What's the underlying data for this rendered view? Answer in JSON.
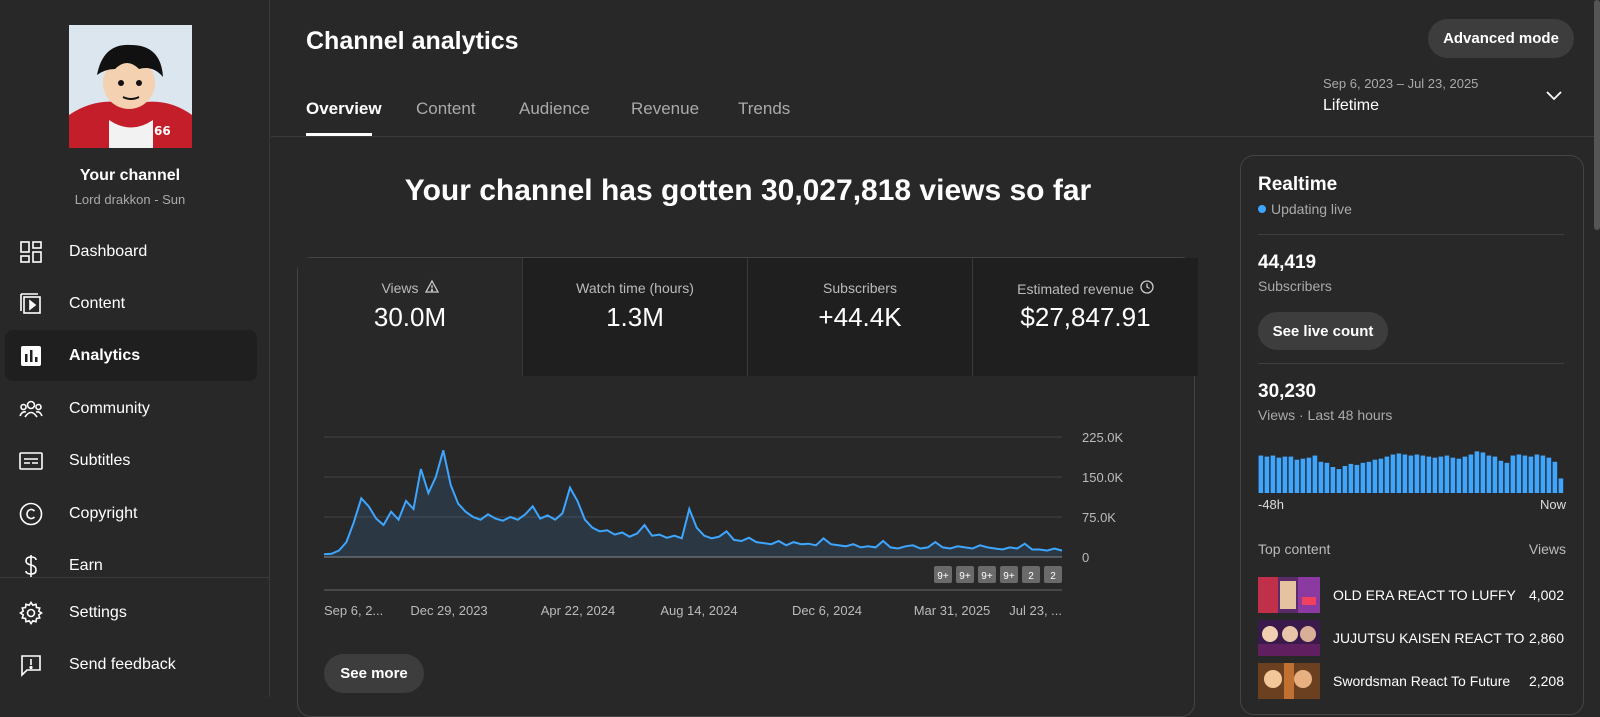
{
  "sidebar": {
    "channel_title": "Your channel",
    "channel_subtitle": "Lord drakkon - Sun",
    "items": [
      {
        "label": "Dashboard",
        "icon": "dashboard-icon"
      },
      {
        "label": "Content",
        "icon": "content-icon"
      },
      {
        "label": "Analytics",
        "icon": "analytics-icon",
        "active": true
      },
      {
        "label": "Community",
        "icon": "community-icon"
      },
      {
        "label": "Subtitles",
        "icon": "subtitles-icon"
      },
      {
        "label": "Copyright",
        "icon": "copyright-icon"
      },
      {
        "label": "Earn",
        "icon": "earn-icon"
      }
    ],
    "bottom_items": [
      {
        "label": "Settings",
        "icon": "gear-icon"
      },
      {
        "label": "Send feedback",
        "icon": "feedback-icon"
      }
    ]
  },
  "header": {
    "title": "Channel analytics",
    "advanced_mode": "Advanced mode",
    "tabs": [
      {
        "label": "Overview",
        "active": true
      },
      {
        "label": "Content"
      },
      {
        "label": "Audience"
      },
      {
        "label": "Revenue"
      },
      {
        "label": "Trends"
      }
    ],
    "date_range": "Sep 6, 2023 – Jul 23, 2025",
    "date_preset": "Lifetime"
  },
  "main": {
    "headline": "Your channel has gotten 30,027,818 views so far",
    "metrics": [
      {
        "label": "Views",
        "value": "30.0M",
        "icon": "warning-icon"
      },
      {
        "label": "Watch time (hours)",
        "value": "1.3M"
      },
      {
        "label": "Subscribers",
        "value": "+44.4K"
      },
      {
        "label": "Estimated revenue",
        "value": "$27,847.91",
        "icon": "clock-icon"
      }
    ],
    "see_more": "See more"
  },
  "chart_data": {
    "type": "line",
    "series": [
      {
        "values": [
          5000,
          6000,
          12000,
          28000,
          65000,
          110000,
          95000,
          72000,
          60000,
          85000,
          70000,
          105000,
          90000,
          165000,
          120000,
          150000,
          200000,
          135000,
          100000,
          85000,
          75000,
          70000,
          80000,
          72000,
          68000,
          75000,
          70000,
          80000,
          95000,
          72000,
          78000,
          70000,
          82000,
          130000,
          105000,
          70000,
          55000,
          48000,
          50000,
          42000,
          46000,
          38000,
          44000,
          60000,
          40000,
          42000,
          36000,
          40000,
          35000,
          90000,
          55000,
          40000,
          35000,
          38000,
          48000,
          32000,
          30000,
          36000,
          28000,
          26000,
          24000,
          30000,
          22000,
          28000,
          24000,
          25000,
          22000,
          35000,
          24000,
          22000,
          20000,
          24000,
          18000,
          20000,
          18000,
          30000,
          18000,
          16000,
          20000,
          22000,
          16000,
          18000,
          28000,
          18000,
          16000,
          20000,
          18000,
          16000,
          22000,
          18000,
          16000,
          14000,
          18000,
          16000,
          25000,
          14000,
          14000,
          12000,
          16000,
          12000
        ]
      }
    ],
    "x_tick_labels": [
      "Sep 6, 2...",
      "Dec 29, 2023",
      "Apr 22, 2024",
      "Aug 14, 2024",
      "Dec 6, 2024",
      "Mar 31, 2025",
      "Jul 23, ..."
    ],
    "y_tick_labels": [
      "225.0K",
      "150.0K",
      "75.0K",
      "0"
    ],
    "ylim": [
      0,
      225000
    ],
    "markers": [
      "9+",
      "9+",
      "9+",
      "9+",
      "2",
      "2"
    ],
    "line_color": "#3ea6ff"
  },
  "realtime": {
    "title": "Realtime",
    "status": "Updating live",
    "subscribers_value": "44,419",
    "subscribers_label": "Subscribers",
    "live_count_button": "See live count",
    "views_value": "30,230",
    "views_label": "Views · Last 48 hours",
    "bars_fraction": [
      0.72,
      0.7,
      0.72,
      0.68,
      0.7,
      0.7,
      0.64,
      0.66,
      0.68,
      0.72,
      0.6,
      0.58,
      0.5,
      0.46,
      0.52,
      0.56,
      0.54,
      0.58,
      0.6,
      0.64,
      0.66,
      0.7,
      0.74,
      0.76,
      0.74,
      0.72,
      0.74,
      0.72,
      0.7,
      0.68,
      0.7,
      0.72,
      0.68,
      0.66,
      0.7,
      0.74,
      0.8,
      0.78,
      0.72,
      0.7,
      0.62,
      0.58,
      0.72,
      0.74,
      0.72,
      0.7,
      0.74,
      0.72,
      0.68,
      0.6,
      0.28
    ],
    "axis_left": "-48h",
    "axis_right": "Now",
    "top_content_label": "Top content",
    "top_content_views_label": "Views",
    "top_content": [
      {
        "title": "OLD ERA REACT TO LUFFY",
        "views": "4,002"
      },
      {
        "title": "JUJUTSU KAISEN REACT TO",
        "views": "2,860"
      },
      {
        "title": "Swordsman React To Future",
        "views": "2,208"
      }
    ],
    "bar_color": "#3ea6ff"
  }
}
